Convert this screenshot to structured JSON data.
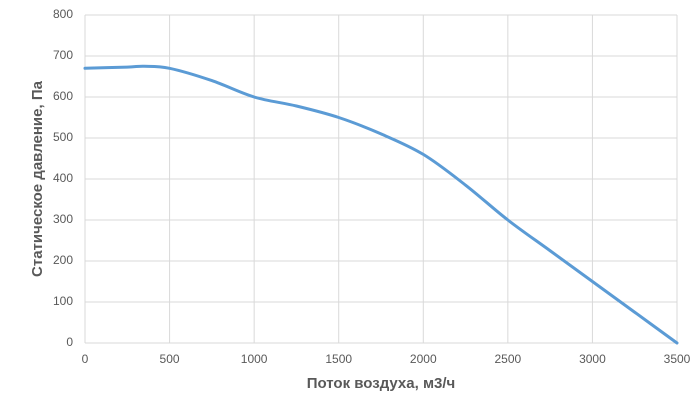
{
  "chart_data": {
    "type": "line",
    "x_label": "Поток воздуха, м3/ч",
    "y_label": "Статическое давление, Па",
    "x": [
      0,
      250,
      350,
      500,
      750,
      1000,
      1250,
      1500,
      1750,
      2000,
      2250,
      2500,
      2750,
      3000,
      3250,
      3500
    ],
    "series": [
      {
        "color": "#5b9bd5",
        "values": [
          670,
          673,
          675,
          670,
          640,
          600,
          578,
          550,
          510,
          460,
          385,
          300,
          225,
          150,
          75,
          0
        ]
      }
    ],
    "xlim": [
      0,
      3500
    ],
    "xticks": [
      0,
      500,
      1000,
      1500,
      2000,
      2500,
      3000,
      3500
    ],
    "ylim": [
      0,
      800
    ],
    "yticks": [
      0,
      100,
      200,
      300,
      400,
      500,
      600,
      700,
      800
    ],
    "grid": true
  }
}
